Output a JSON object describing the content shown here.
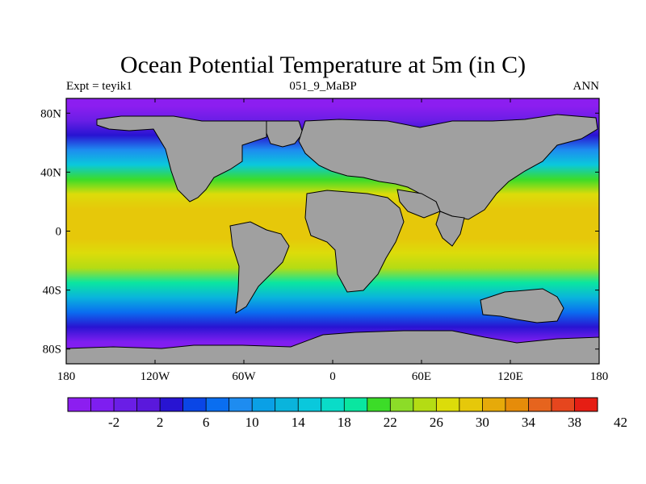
{
  "title": "Ocean Potential Temperature at 5m (in C)",
  "left_label": "Expt = teyik1",
  "center_label": "051_9_MaBP",
  "right_label": "ANN",
  "lat_ticks": [
    "80N",
    "40N",
    "0",
    "40S",
    "80S"
  ],
  "lon_ticks": [
    "180",
    "120W",
    "60W",
    "0",
    "60E",
    "120E",
    "180"
  ],
  "colorbar": {
    "colors": [
      "#8c1ef0",
      "#7e1ef0",
      "#6a1ee6",
      "#5a18dc",
      "#2814d2",
      "#0a46e6",
      "#0a6ef0",
      "#1e8cf0",
      "#0aa0e6",
      "#0ab4dc",
      "#0ac8dc",
      "#0adcc8",
      "#0ae6a0",
      "#3cdc28",
      "#8cdc28",
      "#b4dc14",
      "#dcdc0a",
      "#e6c80a",
      "#e6aa0a",
      "#e68c0a",
      "#e6641e",
      "#e6461e",
      "#e61e14"
    ],
    "labels": [
      "-2",
      "2",
      "6",
      "10",
      "14",
      "18",
      "22",
      "26",
      "30",
      "34",
      "38",
      "42"
    ]
  },
  "chart_data": {
    "type": "heatmap",
    "title": "Ocean Potential Temperature at 5m (in C)",
    "variable": "Ocean Potential Temperature at 5m",
    "units": "C",
    "experiment": "teyik1",
    "period": "051_9_MaBP",
    "season": "ANN",
    "lon_range": [
      -180,
      180
    ],
    "lat_range": [
      -90,
      90
    ],
    "colorbar_levels": [
      -4,
      -2,
      0,
      2,
      4,
      6,
      8,
      10,
      12,
      14,
      16,
      18,
      20,
      22,
      24,
      26,
      28,
      30,
      32,
      34,
      36,
      38,
      40,
      42
    ],
    "zonal_mean_profile": [
      {
        "lat": 85,
        "temp": -2
      },
      {
        "lat": 75,
        "temp": 1
      },
      {
        "lat": 65,
        "temp": 6
      },
      {
        "lat": 55,
        "temp": 12
      },
      {
        "lat": 45,
        "temp": 17
      },
      {
        "lat": 35,
        "temp": 24
      },
      {
        "lat": 25,
        "temp": 29
      },
      {
        "lat": 15,
        "temp": 31
      },
      {
        "lat": 5,
        "temp": 32
      },
      {
        "lat": -5,
        "temp": 31
      },
      {
        "lat": -15,
        "temp": 30
      },
      {
        "lat": -25,
        "temp": 27
      },
      {
        "lat": -35,
        "temp": 22
      },
      {
        "lat": -45,
        "temp": 16
      },
      {
        "lat": -55,
        "temp": 10
      },
      {
        "lat": -65,
        "temp": 5
      },
      {
        "lat": -75,
        "temp": 0
      },
      {
        "lat": -85,
        "temp": -2
      }
    ],
    "land_color": "#a0a0a0"
  }
}
